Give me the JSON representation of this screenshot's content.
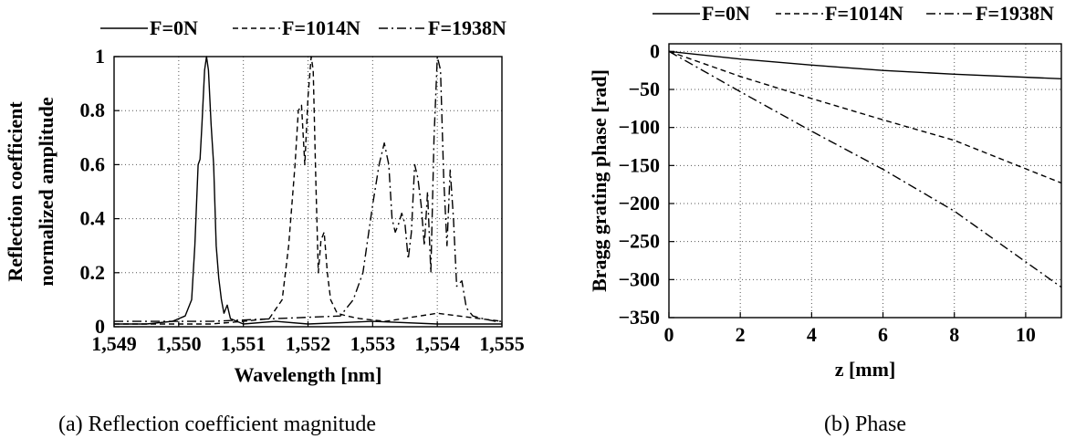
{
  "chart_data": [
    {
      "type": "line",
      "caption": "(a)  Reflection coefficient magnitude",
      "xlabel": "Wavelength [nm]",
      "ylabel_line1": "Reflection coefficient",
      "ylabel_line2": "normalized amplitude",
      "xlim": [
        1549,
        1555
      ],
      "ylim": [
        0,
        1
      ],
      "xticks": [
        1549,
        1550,
        1551,
        1552,
        1553,
        1554,
        1555
      ],
      "xtick_labels": [
        "1,549",
        "1,550",
        "1,551",
        "1,552",
        "1,553",
        "1,554",
        "1,555"
      ],
      "yticks": [
        0,
        0.2,
        0.4,
        0.6,
        0.8,
        1
      ],
      "ytick_labels": [
        "0",
        "0.2",
        "0.4",
        "0.6",
        "0.8",
        "1"
      ],
      "grid": true,
      "legend_position": "top",
      "series": [
        {
          "name": "F=0N",
          "style": "solid",
          "x": [
            1549.0,
            1549.5,
            1549.9,
            1550.1,
            1550.2,
            1550.25,
            1550.3,
            1550.33,
            1550.36,
            1550.4,
            1550.43,
            1550.46,
            1550.5,
            1550.54,
            1550.58,
            1550.62,
            1550.66,
            1550.7,
            1550.75,
            1550.8,
            1550.9,
            1551.0,
            1551.5,
            1552.0,
            1553.0,
            1554.0,
            1555.0
          ],
          "y": [
            0.01,
            0.01,
            0.02,
            0.04,
            0.1,
            0.3,
            0.6,
            0.62,
            0.75,
            0.95,
            1.0,
            0.95,
            0.75,
            0.6,
            0.3,
            0.18,
            0.1,
            0.05,
            0.08,
            0.03,
            0.02,
            0.01,
            0.02,
            0.01,
            0.02,
            0.01,
            0.01
          ]
        },
        {
          "name": "F=1014N",
          "style": "dashed",
          "x": [
            1549.0,
            1550.5,
            1551.0,
            1551.4,
            1551.6,
            1551.7,
            1551.8,
            1551.85,
            1551.9,
            1551.95,
            1552.0,
            1552.05,
            1552.08,
            1552.12,
            1552.16,
            1552.2,
            1552.25,
            1552.3,
            1552.35,
            1552.45,
            1552.6,
            1552.8,
            1553.2,
            1554.0,
            1555.0
          ],
          "y": [
            0.01,
            0.01,
            0.02,
            0.03,
            0.1,
            0.3,
            0.6,
            0.8,
            0.82,
            0.6,
            0.85,
            1.0,
            0.95,
            0.55,
            0.2,
            0.32,
            0.35,
            0.2,
            0.1,
            0.05,
            0.04,
            0.03,
            0.02,
            0.05,
            0.02
          ]
        },
        {
          "name": "F=1938N",
          "style": "dashdot",
          "x": [
            1549.0,
            1550.5,
            1551.5,
            1552.5,
            1552.7,
            1552.85,
            1553.0,
            1553.1,
            1553.18,
            1553.25,
            1553.3,
            1553.35,
            1553.4,
            1553.45,
            1553.5,
            1553.55,
            1553.6,
            1553.65,
            1553.7,
            1553.75,
            1553.8,
            1553.85,
            1553.9,
            1553.95,
            1554.0,
            1554.05,
            1554.1,
            1554.15,
            1554.2,
            1554.25,
            1554.3,
            1554.38,
            1554.45,
            1554.55,
            1554.7,
            1554.9,
            1555.0
          ],
          "y": [
            0.02,
            0.02,
            0.03,
            0.04,
            0.1,
            0.2,
            0.45,
            0.6,
            0.68,
            0.6,
            0.4,
            0.35,
            0.38,
            0.42,
            0.38,
            0.25,
            0.35,
            0.6,
            0.55,
            0.45,
            0.3,
            0.5,
            0.2,
            0.7,
            1.0,
            0.95,
            0.55,
            0.3,
            0.58,
            0.4,
            0.15,
            0.17,
            0.07,
            0.04,
            0.03,
            0.02,
            0.02
          ]
        }
      ]
    },
    {
      "type": "line",
      "caption": "(b)  Phase",
      "xlabel": "z [mm]",
      "ylabel": "Bragg grating phase [rad]",
      "xlim": [
        0,
        11
      ],
      "ylim": [
        -350,
        10
      ],
      "xticks": [
        0,
        2,
        4,
        6,
        8,
        10
      ],
      "xtick_labels": [
        "0",
        "2",
        "4",
        "6",
        "8",
        "10"
      ],
      "yticks": [
        0,
        -50,
        -100,
        -150,
        -200,
        -250,
        -300,
        -350
      ],
      "ytick_labels": [
        "0",
        "−50",
        "−100",
        "−150",
        "−200",
        "−250",
        "−300",
        "−350"
      ],
      "grid": true,
      "legend_position": "top",
      "series": [
        {
          "name": "F=0N",
          "style": "solid",
          "x": [
            0,
            2,
            4,
            6,
            8,
            11
          ],
          "y": [
            0,
            -10,
            -18,
            -25,
            -30,
            -36
          ]
        },
        {
          "name": "F=1014N",
          "style": "dashed",
          "x": [
            0,
            2,
            4,
            6,
            8,
            11
          ],
          "y": [
            0,
            -33,
            -62,
            -90,
            -117,
            -173
          ]
        },
        {
          "name": "F=1938N",
          "style": "dashdot",
          "x": [
            0,
            2,
            4,
            6,
            8,
            11
          ],
          "y": [
            0,
            -53,
            -105,
            -155,
            -210,
            -310
          ]
        }
      ]
    }
  ]
}
